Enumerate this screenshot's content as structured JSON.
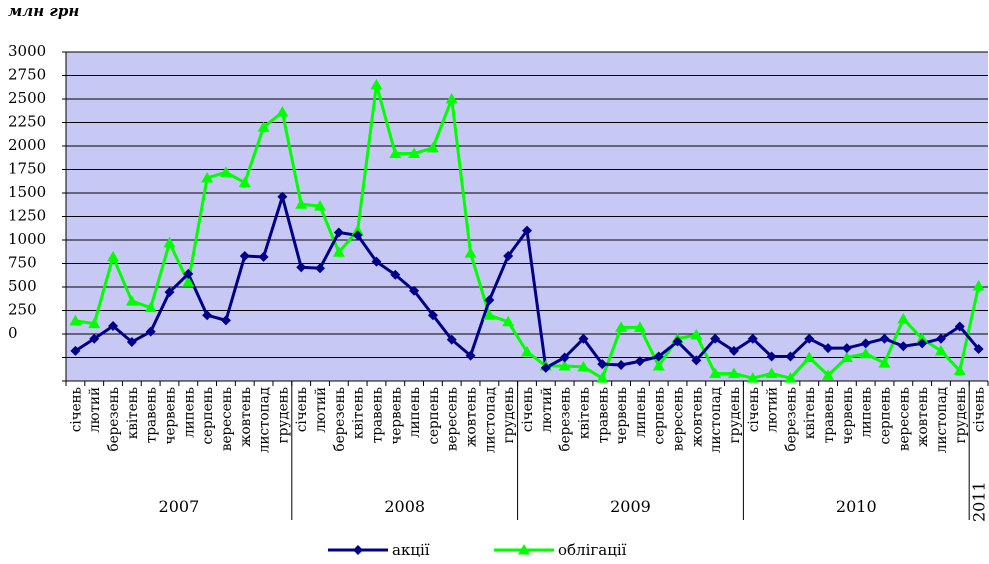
{
  "chart_data": {
    "type": "line",
    "unit_label": "млн грн",
    "y_ticks": [
      "3000",
      "2750",
      "2500",
      "2250",
      "2000",
      "1750",
      "1500",
      "1250",
      "1000",
      "750",
      "500",
      "250",
      "0"
    ],
    "ylim": [
      -500,
      3000
    ],
    "grid": true,
    "legend_position": "bottom",
    "categories": [
      "січень",
      "лютий",
      "березень",
      "квітень",
      "травень",
      "червень",
      "липень",
      "серпень",
      "вересень",
      "жовтень",
      "листопад",
      "грудень",
      "січень",
      "лютий",
      "березень",
      "квітень",
      "травень",
      "червень",
      "липень",
      "серпень",
      "вересень",
      "жовтень",
      "листопад",
      "грудень",
      "січень",
      "лютий",
      "березень",
      "квітень",
      "травень",
      "червень",
      "липень",
      "серпень",
      "вересень",
      "жовтень",
      "листопад",
      "грудень",
      "січень",
      "лютий",
      "березень",
      "квітень",
      "травень",
      "червень",
      "липень",
      "серпень",
      "вересень",
      "жовтень",
      "листопад",
      "грудень",
      "січень"
    ],
    "years": [
      {
        "label": "2007",
        "start": 0,
        "end": 12
      },
      {
        "label": "2008",
        "start": 12,
        "end": 24
      },
      {
        "label": "2009",
        "start": 24,
        "end": 36
      },
      {
        "label": "2010",
        "start": 36,
        "end": 48
      },
      {
        "label": "2011",
        "start": 48,
        "end": 49
      }
    ],
    "series": [
      {
        "name": "акції",
        "color": "#00008B",
        "marker": "diamond",
        "values": [
          -180,
          -50,
          85,
          -85,
          25,
          445,
          640,
          200,
          145,
          830,
          820,
          1460,
          710,
          700,
          1080,
          1050,
          770,
          630,
          460,
          200,
          -60,
          -230,
          360,
          830,
          1100,
          -360,
          -250,
          -50,
          -320,
          -330,
          -290,
          -240,
          -80,
          -280,
          -50,
          -180,
          -50,
          -240,
          -240,
          -50,
          -150,
          -150,
          -100,
          -50,
          -130,
          -100,
          -50,
          80,
          -160
        ]
      },
      {
        "name": "облігації",
        "color": "#00FF00",
        "marker": "triangle",
        "values": [
          140,
          110,
          820,
          350,
          280,
          970,
          550,
          1660,
          1720,
          1610,
          2200,
          2360,
          1380,
          1360,
          870,
          1100,
          2650,
          1920,
          1920,
          1980,
          2500,
          860,
          200,
          130,
          -190,
          -340,
          -340,
          -350,
          -470,
          70,
          70,
          -340,
          -50,
          -10,
          -420,
          -420,
          -470,
          -420,
          -470,
          -250,
          -440,
          -250,
          -210,
          -310,
          160,
          -50,
          -180,
          -390,
          510
        ]
      }
    ]
  }
}
